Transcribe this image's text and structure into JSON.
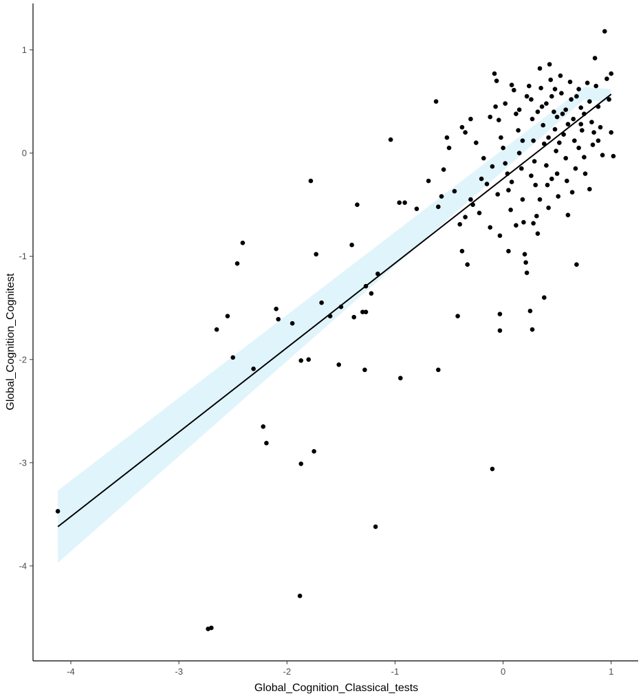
{
  "chart_data": {
    "type": "scatter",
    "title": "",
    "xlabel": "Global_Cognition_Classical_tests",
    "ylabel": "Global_Cognition_Cognitest",
    "xlim": [
      -4.35,
      1.25
    ],
    "ylim": [
      -4.92,
      1.45
    ],
    "xticks": [
      -4,
      -3,
      -2,
      -1,
      0,
      1
    ],
    "yticks": [
      -4,
      -3,
      -2,
      -1,
      0,
      1
    ],
    "grid": false,
    "legend": "none",
    "colors": {
      "points": "#000000",
      "line": "#000000",
      "ribbon": "#e0f4fb",
      "axis": "#000000"
    },
    "regression": {
      "x": [
        -4.12,
        1.0
      ],
      "y": [
        -3.62,
        0.57
      ],
      "ci_lower": [
        -3.97,
        0.52,
        0.49
      ],
      "ci_upper": [
        -3.27,
        0.64,
        0.62
      ],
      "ci_x": [
        -4.12,
        0.75,
        1.0
      ]
    },
    "points": [
      [
        -4.12,
        -3.47
      ],
      [
        -2.73,
        -4.61
      ],
      [
        -2.7,
        -4.6
      ],
      [
        -1.88,
        -4.29
      ],
      [
        -1.18,
        -3.62
      ],
      [
        -0.1,
        -3.06
      ],
      [
        -1.87,
        -3.01
      ],
      [
        -1.75,
        -2.89
      ],
      [
        -2.19,
        -2.81
      ],
      [
        -2.22,
        -2.65
      ],
      [
        -2.31,
        -2.09
      ],
      [
        -1.87,
        -2.01
      ],
      [
        -1.8,
        -2.0
      ],
      [
        -2.5,
        -1.98
      ],
      [
        -1.52,
        -2.05
      ],
      [
        -1.28,
        -2.1
      ],
      [
        -0.95,
        -2.18
      ],
      [
        -0.6,
        -2.1
      ],
      [
        -2.65,
        -1.71
      ],
      [
        -2.55,
        -1.58
      ],
      [
        -2.08,
        -1.61
      ],
      [
        -2.1,
        -1.51
      ],
      [
        -1.95,
        -1.65
      ],
      [
        -1.68,
        -1.45
      ],
      [
        -1.6,
        -1.58
      ],
      [
        -1.5,
        -1.49
      ],
      [
        -1.3,
        -1.54
      ],
      [
        -1.27,
        -1.54
      ],
      [
        -1.38,
        -1.59
      ],
      [
        -1.22,
        -1.36
      ],
      [
        -1.16,
        -1.17
      ],
      [
        -1.27,
        -1.29
      ],
      [
        -0.42,
        -1.58
      ],
      [
        -0.03,
        -1.72
      ],
      [
        -0.03,
        -1.56
      ],
      [
        0.25,
        -1.53
      ],
      [
        0.27,
        -1.71
      ],
      [
        0.38,
        -1.4
      ],
      [
        -2.46,
        -1.07
      ],
      [
        -2.41,
        -0.87
      ],
      [
        -1.73,
        -0.98
      ],
      [
        -1.4,
        -0.89
      ],
      [
        -1.78,
        -0.27
      ],
      [
        -1.35,
        -0.5
      ],
      [
        -1.04,
        0.13
      ],
      [
        -0.96,
        -0.48
      ],
      [
        -0.91,
        -0.48
      ],
      [
        -0.8,
        -0.54
      ],
      [
        -0.69,
        -0.27
      ],
      [
        -0.6,
        -0.52
      ],
      [
        -0.57,
        -0.42
      ],
      [
        -0.62,
        0.5
      ],
      [
        -0.55,
        -0.16
      ],
      [
        -0.52,
        0.15
      ],
      [
        -0.5,
        0.05
      ],
      [
        -0.45,
        -0.37
      ],
      [
        -0.4,
        -0.69
      ],
      [
        -0.38,
        -0.95
      ],
      [
        -0.35,
        -0.62
      ],
      [
        -0.3,
        -0.45
      ],
      [
        -0.28,
        -0.5
      ],
      [
        -0.33,
        -1.08
      ],
      [
        -0.38,
        0.25
      ],
      [
        -0.35,
        0.2
      ],
      [
        -0.3,
        0.33
      ],
      [
        -0.25,
        0.1
      ],
      [
        -0.2,
        -0.25
      ],
      [
        -0.15,
        -0.3
      ],
      [
        -0.1,
        -0.13
      ],
      [
        -0.08,
        0.77
      ],
      [
        -0.06,
        0.7
      ],
      [
        -0.07,
        0.45
      ],
      [
        -0.04,
        0.32
      ],
      [
        -0.02,
        0.15
      ],
      [
        0.0,
        0.05
      ],
      [
        0.02,
        -0.1
      ],
      [
        0.04,
        -0.2
      ],
      [
        0.05,
        -0.36
      ],
      [
        0.07,
        -0.55
      ],
      [
        0.08,
        0.66
      ],
      [
        0.1,
        0.61
      ],
      [
        0.12,
        0.38
      ],
      [
        0.14,
        0.22
      ],
      [
        0.15,
        0.0
      ],
      [
        0.17,
        -0.15
      ],
      [
        0.18,
        -0.45
      ],
      [
        0.19,
        -0.67
      ],
      [
        0.2,
        -0.98
      ],
      [
        0.21,
        -1.06
      ],
      [
        0.22,
        -1.16
      ],
      [
        0.24,
        0.65
      ],
      [
        0.26,
        0.52
      ],
      [
        0.27,
        0.33
      ],
      [
        0.28,
        0.12
      ],
      [
        0.29,
        -0.08
      ],
      [
        0.3,
        -0.31
      ],
      [
        0.31,
        -0.61
      ],
      [
        0.32,
        -0.78
      ],
      [
        0.34,
        0.82
      ],
      [
        0.35,
        0.63
      ],
      [
        0.36,
        0.45
      ],
      [
        0.37,
        0.27
      ],
      [
        0.38,
        0.09
      ],
      [
        0.4,
        -0.12
      ],
      [
        0.41,
        -0.31
      ],
      [
        0.42,
        -0.53
      ],
      [
        0.43,
        0.86
      ],
      [
        0.44,
        0.71
      ],
      [
        0.45,
        0.55
      ],
      [
        0.47,
        0.4
      ],
      [
        0.48,
        0.23
      ],
      [
        0.49,
        0.02
      ],
      [
        0.5,
        -0.2
      ],
      [
        0.51,
        -0.42
      ],
      [
        0.53,
        0.75
      ],
      [
        0.54,
        0.58
      ],
      [
        0.55,
        0.38
      ],
      [
        0.56,
        0.18
      ],
      [
        0.58,
        -0.05
      ],
      [
        0.59,
        -0.27
      ],
      [
        0.6,
        -0.6
      ],
      [
        0.62,
        0.69
      ],
      [
        0.63,
        0.52
      ],
      [
        0.65,
        0.33
      ],
      [
        0.66,
        0.12
      ],
      [
        0.67,
        -0.15
      ],
      [
        0.68,
        -1.08
      ],
      [
        0.7,
        0.62
      ],
      [
        0.72,
        0.44
      ],
      [
        0.73,
        0.22
      ],
      [
        0.75,
        -0.04
      ],
      [
        0.76,
        -0.2
      ],
      [
        0.78,
        0.68
      ],
      [
        0.8,
        0.5
      ],
      [
        0.82,
        0.3
      ],
      [
        0.83,
        0.08
      ],
      [
        0.85,
        0.92
      ],
      [
        0.86,
        0.65
      ],
      [
        0.88,
        0.45
      ],
      [
        0.9,
        0.25
      ],
      [
        0.92,
        -0.02
      ],
      [
        0.94,
        1.18
      ],
      [
        0.96,
        0.72
      ],
      [
        0.98,
        0.52
      ],
      [
        1.0,
        0.2
      ],
      [
        1.0,
        0.77
      ],
      [
        1.02,
        -0.03
      ],
      [
        -0.03,
        -0.8
      ],
      [
        0.05,
        -0.95
      ],
      [
        0.12,
        -0.7
      ],
      [
        0.28,
        -0.68
      ],
      [
        0.45,
        -0.25
      ],
      [
        0.52,
        0.1
      ],
      [
        0.6,
        0.28
      ],
      [
        0.7,
        0.05
      ],
      [
        0.8,
        -0.35
      ],
      [
        0.15,
        0.42
      ],
      [
        0.22,
        0.55
      ],
      [
        0.32,
        0.4
      ],
      [
        0.4,
        0.48
      ],
      [
        0.48,
        0.62
      ],
      [
        0.58,
        0.42
      ],
      [
        0.68,
        0.55
      ],
      [
        0.75,
        0.38
      ],
      [
        0.88,
        0.12
      ],
      [
        -0.12,
        0.35
      ],
      [
        -0.18,
        -0.05
      ],
      [
        -0.05,
        -0.4
      ],
      [
        0.08,
        -0.28
      ],
      [
        0.18,
        0.12
      ],
      [
        0.26,
        -0.22
      ],
      [
        0.34,
        -0.45
      ],
      [
        0.42,
        0.15
      ],
      [
        0.5,
        0.35
      ],
      [
        0.64,
        -0.38
      ],
      [
        0.72,
        0.28
      ],
      [
        0.84,
        0.2
      ],
      [
        -0.22,
        -0.58
      ],
      [
        -0.12,
        -0.72
      ],
      [
        0.02,
        0.48
      ]
    ]
  }
}
